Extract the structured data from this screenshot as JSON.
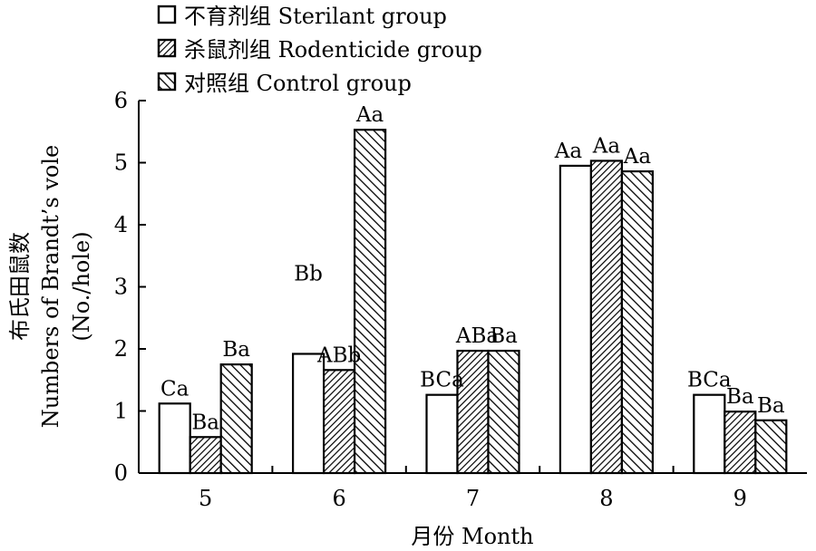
{
  "chart_data": {
    "type": "bar",
    "categories": [
      "5",
      "6",
      "7",
      "8",
      "9"
    ],
    "series": [
      {
        "name": "不育剂组 Sterilant group",
        "values": [
          1.12,
          1.92,
          1.26,
          4.95,
          1.26
        ],
        "labels": [
          "Ca",
          "Bb",
          "BCa",
          "Aa",
          "BCa"
        ],
        "pattern": "none"
      },
      {
        "name": "杀鼠剂组 Rodenticide group",
        "values": [
          0.58,
          1.66,
          1.97,
          5.03,
          0.99
        ],
        "labels": [
          "Ba",
          "ABb",
          "ABa",
          "Aa",
          "Ba"
        ],
        "pattern": "hatch-dense"
      },
      {
        "name": "对照组 Control group",
        "values": [
          1.75,
          5.53,
          1.97,
          4.86,
          0.85
        ],
        "labels": [
          "Ba",
          "Aa",
          "Ba",
          "Aa",
          "Ba"
        ],
        "pattern": "hatch-coarse"
      }
    ],
    "xlabel": "月份 Month",
    "ylabel_lines": [
      "布氏田鼠数",
      "Numbers of Brandt’s vole",
      "(No./hole)"
    ],
    "yticks": [
      0,
      1,
      2,
      3,
      4,
      5,
      6
    ],
    "ylim": [
      0,
      6
    ],
    "legend_position": "top-left",
    "grid": false,
    "colors": {
      "bar_fill": "#ffffff",
      "stroke": "#000000"
    }
  }
}
